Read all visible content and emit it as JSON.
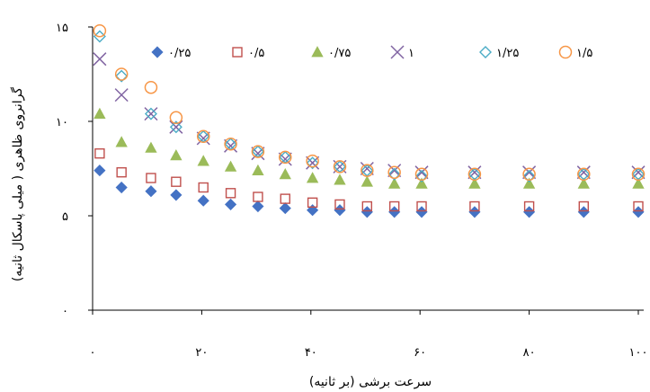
{
  "chart_data": {
    "type": "scatter",
    "title": "",
    "xlabel": "سرعت برشی (بر ثانیه)",
    "ylabel": "گرانروی ظاهری ( میلی پاسکال ثانیه)",
    "xlim": [
      0,
      100
    ],
    "ylim": [
      0,
      15
    ],
    "x_ticks": [
      0,
      20,
      40,
      60,
      80,
      100
    ],
    "x_tick_labels": [
      "۰",
      "۲۰",
      "۴۰",
      "۶۰",
      "۸۰",
      "۱۰۰"
    ],
    "y_ticks": [
      0,
      5,
      10,
      15
    ],
    "y_tick_labels": [
      "۰",
      "۵",
      "۱۰",
      "۱۵"
    ],
    "grid": false,
    "legend_position": "top",
    "x": [
      1.3,
      5.3,
      10.7,
      15.3,
      20.3,
      25.3,
      30.3,
      35.3,
      40.3,
      45.3,
      50.3,
      55.3,
      60.3,
      70,
      80,
      90,
      100
    ],
    "series": [
      {
        "name": "۰/۲۵",
        "marker": "diamond-filled",
        "color": "#4472C4",
        "values": [
          7.4,
          6.5,
          6.3,
          6.1,
          5.8,
          5.6,
          5.5,
          5.4,
          5.3,
          5.3,
          5.2,
          5.2,
          5.2,
          5.2,
          5.2,
          5.2,
          5.2
        ]
      },
      {
        "name": "۰/۵",
        "marker": "square-open",
        "color": "#C0504D",
        "values": [
          8.3,
          7.3,
          7.0,
          6.8,
          6.5,
          6.2,
          6.0,
          5.9,
          5.7,
          5.6,
          5.5,
          5.5,
          5.5,
          5.5,
          5.5,
          5.5,
          5.5
        ]
      },
      {
        "name": "۰/۷۵",
        "marker": "triangle-filled",
        "color": "#9BBB59",
        "values": [
          10.4,
          8.9,
          8.6,
          8.2,
          7.9,
          7.6,
          7.4,
          7.2,
          7.0,
          6.9,
          6.8,
          6.7,
          6.7,
          6.7,
          6.7,
          6.7,
          6.7
        ]
      },
      {
        "name": "۱",
        "marker": "x",
        "color": "#8064A2",
        "values": [
          13.3,
          11.4,
          10.4,
          9.7,
          9.1,
          8.7,
          8.3,
          8.0,
          7.8,
          7.6,
          7.5,
          7.4,
          7.3,
          7.3,
          7.3,
          7.3,
          7.3
        ]
      },
      {
        "name": "۱/۲۵",
        "marker": "diamond-open",
        "color": "#4BACC6",
        "values": [
          14.5,
          12.4,
          10.4,
          9.7,
          9.2,
          8.8,
          8.4,
          8.1,
          7.8,
          7.6,
          7.4,
          7.2,
          7.1,
          7.2,
          7.1,
          7.2,
          7.2
        ]
      },
      {
        "name": "۱/۵",
        "marker": "circle-open",
        "color": "#F79646",
        "values": [
          14.8,
          12.5,
          11.8,
          10.2,
          9.2,
          8.8,
          8.4,
          8.1,
          7.9,
          7.6,
          7.4,
          7.3,
          7.2,
          7.2,
          7.2,
          7.2,
          7.2
        ]
      }
    ]
  }
}
